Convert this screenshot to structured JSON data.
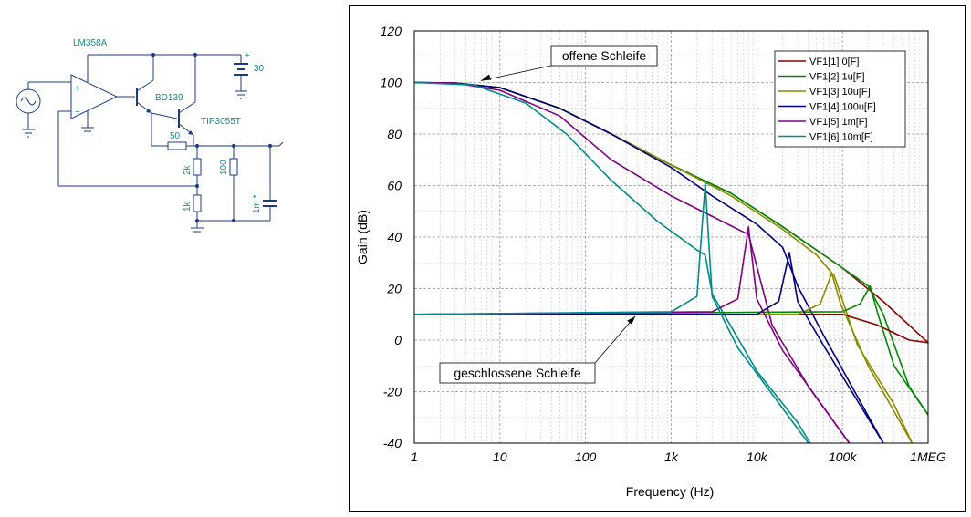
{
  "schematic": {
    "opamp_label": "LM358A",
    "opamp_plus": "+",
    "opamp_minus": "−",
    "q1_label": "BD139",
    "q2_label": "TIP3055T",
    "supply_value": "30",
    "supply_plus": "+",
    "r_series": "50",
    "r_upper": "2k",
    "r_lower": "1k",
    "r_load": "100",
    "c_label": "1m *"
  },
  "chart_data": {
    "type": "line",
    "xlabel": "Frequency (Hz)",
    "ylabel": "Gain (dB)",
    "xscale": "log",
    "xlim": [
      1,
      1000000
    ],
    "ylim": [
      -40,
      120
    ],
    "x_ticks": [
      {
        "v": 1,
        "label": "1"
      },
      {
        "v": 10,
        "label": "10"
      },
      {
        "v": 100,
        "label": "100"
      },
      {
        "v": 1000,
        "label": "1k"
      },
      {
        "v": 10000,
        "label": "10k"
      },
      {
        "v": 100000,
        "label": "100k"
      },
      {
        "v": 1000000,
        "label": "1MEG"
      }
    ],
    "y_ticks": [
      120,
      100,
      80,
      60,
      40,
      20,
      0,
      -20,
      -40
    ],
    "grid": true,
    "legend_position": "top-right",
    "annotations": [
      {
        "text": "offene Schleife",
        "x": 6,
        "y": 100
      },
      {
        "text": "geschlossene Schleife",
        "x": 400,
        "y": 10
      }
    ],
    "open_loop_series": [
      {
        "name": "VF1[1]  0[F]",
        "color": "#8b0000",
        "points": [
          [
            1,
            100
          ],
          [
            3,
            99.8
          ],
          [
            10,
            98
          ],
          [
            50,
            90
          ],
          [
            200,
            80
          ],
          [
            1000,
            68
          ],
          [
            5000,
            57
          ],
          [
            20000,
            44
          ],
          [
            100000,
            28
          ],
          [
            300000,
            15
          ],
          [
            1000000,
            -1
          ]
        ]
      },
      {
        "name": "VF1[2]  1u[F]",
        "color": "#008a00",
        "points": [
          [
            1,
            100
          ],
          [
            3,
            99.8
          ],
          [
            10,
            98
          ],
          [
            50,
            90
          ],
          [
            200,
            80
          ],
          [
            1000,
            68
          ],
          [
            5000,
            57
          ],
          [
            20000,
            44
          ],
          [
            100000,
            28
          ],
          [
            200000,
            21
          ],
          [
            300000,
            10
          ],
          [
            600000,
            -18
          ],
          [
            1000000,
            -29
          ]
        ]
      },
      {
        "name": "VF1[3]  10u[F]",
        "color": "#8c8c00",
        "points": [
          [
            1,
            100
          ],
          [
            3,
            99.8
          ],
          [
            10,
            98
          ],
          [
            50,
            90
          ],
          [
            200,
            80
          ],
          [
            1000,
            68
          ],
          [
            5000,
            56
          ],
          [
            20000,
            43
          ],
          [
            50000,
            33
          ],
          [
            80000,
            25
          ],
          [
            150000,
            -2
          ],
          [
            400000,
            -25
          ],
          [
            650000,
            -40
          ]
        ]
      },
      {
        "name": "VF1[4]  100u[F]",
        "color": "#000080",
        "points": [
          [
            1,
            100
          ],
          [
            3,
            99.8
          ],
          [
            10,
            98
          ],
          [
            50,
            90
          ],
          [
            200,
            80
          ],
          [
            1000,
            67
          ],
          [
            3000,
            56
          ],
          [
            10000,
            45
          ],
          [
            20000,
            36
          ],
          [
            30000,
            21
          ],
          [
            60000,
            2
          ],
          [
            150000,
            -22
          ],
          [
            300000,
            -40
          ]
        ]
      },
      {
        "name": "VF1[5]  1m[F]",
        "color": "#800080",
        "points": [
          [
            1,
            100
          ],
          [
            3,
            99.8
          ],
          [
            10,
            97
          ],
          [
            50,
            87
          ],
          [
            200,
            70
          ],
          [
            1000,
            56
          ],
          [
            4000,
            46
          ],
          [
            8000,
            41
          ],
          [
            15000,
            6
          ],
          [
            40000,
            -18
          ],
          [
            120000,
            -40
          ]
        ]
      },
      {
        "name": "VF1[6]  10m[F]",
        "color": "#008b8b",
        "points": [
          [
            1,
            100
          ],
          [
            5,
            99
          ],
          [
            20,
            92
          ],
          [
            60,
            80
          ],
          [
            200,
            62
          ],
          [
            700,
            46
          ],
          [
            2000,
            35
          ],
          [
            2500,
            33
          ],
          [
            3000,
            18
          ],
          [
            10000,
            -12
          ],
          [
            30000,
            -32
          ],
          [
            42000,
            -40
          ]
        ]
      }
    ],
    "closed_loop_series": [
      {
        "color": "#8b0000",
        "points": [
          [
            1,
            10
          ],
          [
            100000,
            10
          ],
          [
            250000,
            6
          ],
          [
            600000,
            0
          ],
          [
            1000000,
            -1
          ]
        ]
      },
      {
        "color": "#008a00",
        "points": [
          [
            1,
            10
          ],
          [
            100000,
            11
          ],
          [
            160000,
            14
          ],
          [
            210000,
            21
          ],
          [
            260000,
            10
          ],
          [
            400000,
            -10
          ],
          [
            1000000,
            -29
          ]
        ]
      },
      {
        "color": "#8c8c00",
        "points": [
          [
            1,
            10
          ],
          [
            30000,
            10
          ],
          [
            55000,
            14
          ],
          [
            75000,
            26
          ],
          [
            95000,
            14
          ],
          [
            200000,
            -10
          ],
          [
            650000,
            -40
          ]
        ]
      },
      {
        "color": "#000080",
        "points": [
          [
            1,
            10
          ],
          [
            10000,
            10
          ],
          [
            18000,
            15
          ],
          [
            24000,
            34
          ],
          [
            30000,
            15
          ],
          [
            60000,
            -2
          ],
          [
            300000,
            -40
          ]
        ]
      },
      {
        "color": "#800080",
        "points": [
          [
            1,
            10
          ],
          [
            3000,
            11
          ],
          [
            6000,
            16
          ],
          [
            8000,
            44
          ],
          [
            10000,
            16
          ],
          [
            20000,
            -4
          ],
          [
            120000,
            -40
          ]
        ]
      },
      {
        "color": "#008b8b",
        "points": [
          [
            1,
            10
          ],
          [
            1000,
            11
          ],
          [
            2000,
            17
          ],
          [
            2500,
            61
          ],
          [
            3000,
            17
          ],
          [
            6000,
            -3
          ],
          [
            40000,
            -40
          ]
        ]
      }
    ]
  }
}
